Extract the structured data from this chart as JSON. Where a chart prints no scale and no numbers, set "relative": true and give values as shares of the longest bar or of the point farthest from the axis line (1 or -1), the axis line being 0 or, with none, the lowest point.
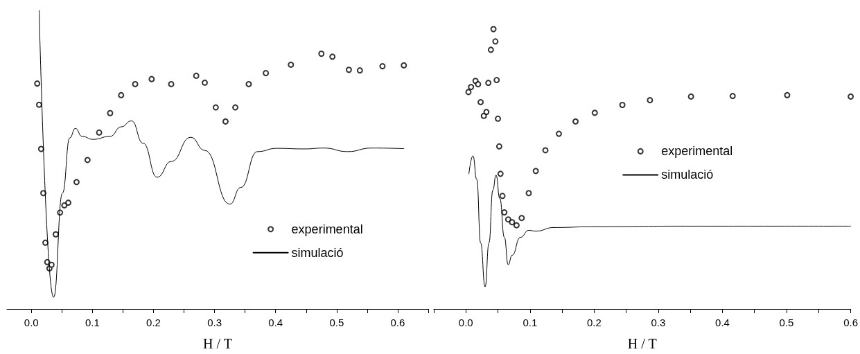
{
  "chart_data": [
    {
      "type": "scatter",
      "relative": true,
      "xlabel": "H / T",
      "legend": "bottom right",
      "grid": false,
      "xlim": [
        -0.04,
        0.65
      ],
      "xticks": [
        {
          "value": 0,
          "label": "0.0"
        },
        {
          "value": 0.05,
          "label": null
        },
        0.1,
        {
          "value": 0.15,
          "label": null
        },
        0.2,
        {
          "value": 0.25,
          "label": null
        },
        0.3,
        {
          "value": 0.35,
          "label": null
        },
        0.4,
        {
          "value": 0.45,
          "label": null
        },
        0.5,
        {
          "value": 0.55,
          "label": null
        },
        0.6,
        {
          "value": 0.65,
          "label": null
        }
      ],
      "series": [
        {
          "name": "experimental",
          "marker": "circle",
          "color": "#000000",
          "x": [
            0.0096,
            0.0127,
            0.016,
            0.0196,
            0.023,
            0.026,
            0.0296,
            0.033,
            0.04,
            0.047,
            0.054,
            0.0605,
            0.074,
            0.092,
            0.111,
            0.129,
            0.147,
            0.17,
            0.197,
            0.229,
            0.27,
            0.284,
            0.302,
            0.318,
            0.334,
            0.356,
            0.384,
            0.425,
            0.475,
            0.493,
            0.52,
            0.538,
            0.575,
            0.61
          ],
          "values": [
            0.755,
            0.684,
            0.536,
            0.388,
            0.222,
            0.157,
            0.136,
            0.148,
            0.25,
            0.323,
            0.347,
            0.356,
            0.425,
            0.499,
            0.591,
            0.656,
            0.716,
            0.753,
            0.77,
            0.753,
            0.781,
            0.758,
            0.675,
            0.628,
            0.675,
            0.753,
            0.79,
            0.818,
            0.855,
            0.845,
            0.801,
            0.799,
            0.813,
            0.816
          ]
        },
        {
          "name": "simulació",
          "type": "line",
          "marker": "none",
          "line_style": "solid",
          "color": "#000000",
          "x": [
            0.0127,
            0.0364,
            0.051,
            0.063,
            0.072,
            0.083,
            0.101,
            0.129,
            0.147,
            0.164,
            0.183,
            0.206,
            0.229,
            0.261,
            0.284,
            0.325,
            0.343,
            0.37,
            0.402,
            0.447,
            0.479,
            0.518,
            0.557,
            0.61
          ],
          "values": [
            1.0,
            0.039,
            0.388,
            0.573,
            0.605,
            0.578,
            0.568,
            0.578,
            0.61,
            0.63,
            0.555,
            0.441,
            0.494,
            0.575,
            0.531,
            0.351,
            0.407,
            0.527,
            0.538,
            0.536,
            0.539,
            0.527,
            0.539,
            0.537
          ]
        }
      ]
    },
    {
      "type": "scatter",
      "relative": true,
      "xlabel": "H / T",
      "legend": "right",
      "grid": false,
      "xlim": [
        -0.05,
        0.6
      ],
      "xticks": [
        {
          "value": -0.05,
          "label": null
        },
        {
          "value": 0,
          "label": "0.0"
        },
        {
          "value": 0.05,
          "label": null
        },
        0.1,
        {
          "value": 0.15,
          "label": null
        },
        0.2,
        {
          "value": 0.25,
          "label": null
        },
        0.3,
        {
          "value": 0.35,
          "label": null
        },
        0.4,
        {
          "value": 0.45,
          "label": null
        },
        0.5,
        {
          "value": 0.55,
          "label": null
        },
        0.6
      ],
      "series": [
        {
          "name": "experimental",
          "marker": "circle",
          "color": "#000000",
          "x": [
            0.004,
            0.008,
            0.015,
            0.019,
            0.023,
            0.028,
            0.032,
            0.035,
            0.039,
            0.043,
            0.046,
            0.048,
            0.05,
            0.052,
            0.054,
            0.057,
            0.06,
            0.066,
            0.072,
            0.079,
            0.087,
            0.098,
            0.109,
            0.124,
            0.145,
            0.171,
            0.201,
            0.244,
            0.287,
            0.351,
            0.416,
            0.501,
            0.6
          ],
          "values": [
            0.775,
            0.793,
            0.815,
            0.803,
            0.739,
            0.69,
            0.704,
            0.808,
            0.926,
            1.0,
            0.956,
            0.818,
            0.68,
            0.581,
            0.483,
            0.404,
            0.345,
            0.32,
            0.31,
            0.299,
            0.325,
            0.414,
            0.493,
            0.567,
            0.626,
            0.67,
            0.701,
            0.729,
            0.746,
            0.759,
            0.761,
            0.764,
            0.759
          ]
        },
        {
          "name": "simulació",
          "type": "line",
          "marker": "none",
          "line_style": "solid",
          "color": "#000000",
          "x": [
            0.0047,
            0.011,
            0.017,
            0.023,
            0.03,
            0.036,
            0.042,
            0.047,
            0.053,
            0.06,
            0.066,
            0.072,
            0.085,
            0.098,
            0.109,
            0.137,
            0.201,
            0.33,
            0.6
          ],
          "values": [
            0.483,
            0.547,
            0.463,
            0.236,
            0.079,
            0.236,
            0.424,
            0.478,
            0.394,
            0.256,
            0.158,
            0.192,
            0.256,
            0.281,
            0.278,
            0.291,
            0.294,
            0.296,
            0.296
          ]
        }
      ]
    }
  ]
}
